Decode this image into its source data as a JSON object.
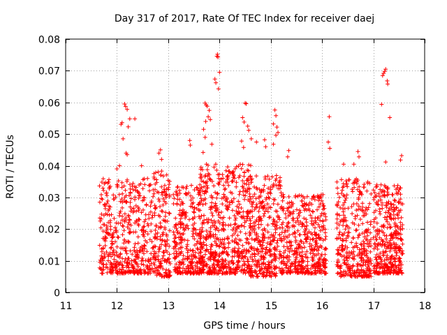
{
  "chart_data": {
    "type": "scatter",
    "title": "Day 317 of 2017, Rate Of TEC Index for receiver daej",
    "xlabel": "GPS time / hours",
    "ylabel": "ROTI / TECUs",
    "xlim": [
      11,
      18
    ],
    "ylim": [
      0,
      0.08
    ],
    "xticks": [
      11,
      12,
      13,
      14,
      15,
      16,
      17,
      18
    ],
    "xtick_labels": [
      "11",
      "12",
      "13",
      "14",
      "15",
      "16",
      "17",
      "18"
    ],
    "yticks": [
      0,
      0.01,
      0.02,
      0.03,
      0.04,
      0.05,
      0.06,
      0.07,
      0.08
    ],
    "ytick_labels": [
      "0",
      "0.01",
      "0.02",
      "0.03",
      "0.04",
      "0.05",
      "0.06",
      "0.07",
      "0.08"
    ],
    "grid": true,
    "marker": "+",
    "color": "#ff0000",
    "series": [
      {
        "name": "ROTI",
        "points": [
          [
            12.08,
            0.0531
          ],
          [
            12.1,
            0.0536
          ],
          [
            12.15,
            0.0595
          ],
          [
            12.17,
            0.0587
          ],
          [
            12.2,
            0.0578
          ],
          [
            12.22,
            0.0523
          ],
          [
            12.25,
            0.0548
          ],
          [
            12.35,
            0.0548
          ],
          [
            12.12,
            0.0485
          ],
          [
            12.18,
            0.044
          ],
          [
            12.2,
            0.0435
          ],
          [
            12.05,
            0.04
          ],
          [
            12.0,
            0.039
          ],
          [
            12.48,
            0.04
          ],
          [
            12.85,
            0.045
          ],
          [
            12.82,
            0.044
          ],
          [
            12.87,
            0.042
          ],
          [
            13.42,
            0.048
          ],
          [
            13.43,
            0.0465
          ],
          [
            13.72,
            0.0598
          ],
          [
            13.74,
            0.0592
          ],
          [
            13.76,
            0.0588
          ],
          [
            13.73,
            0.054
          ],
          [
            13.8,
            0.0575
          ],
          [
            13.82,
            0.0546
          ],
          [
            13.78,
            0.0555
          ],
          [
            13.69,
            0.0515
          ],
          [
            13.68,
            0.0442
          ],
          [
            13.72,
            0.049
          ],
          [
            13.85,
            0.0468
          ],
          [
            13.91,
            0.0674
          ],
          [
            13.93,
            0.0662
          ],
          [
            13.95,
            0.0746
          ],
          [
            13.96,
            0.0752
          ],
          [
            13.97,
            0.0743
          ],
          [
            14.0,
            0.0695
          ],
          [
            13.98,
            0.0643
          ],
          [
            14.45,
            0.0552
          ],
          [
            14.48,
            0.0538
          ],
          [
            14.5,
            0.0598
          ],
          [
            14.52,
            0.0596
          ],
          [
            14.55,
            0.0525
          ],
          [
            14.57,
            0.0512
          ],
          [
            14.43,
            0.0478
          ],
          [
            14.47,
            0.0458
          ],
          [
            14.62,
            0.0485
          ],
          [
            14.72,
            0.0475
          ],
          [
            14.88,
            0.0482
          ],
          [
            14.9,
            0.046
          ],
          [
            15.08,
            0.0576
          ],
          [
            15.1,
            0.0558
          ],
          [
            15.05,
            0.0532
          ],
          [
            15.1,
            0.0496
          ],
          [
            15.14,
            0.0505
          ],
          [
            15.12,
            0.0522
          ],
          [
            15.05,
            0.0468
          ],
          [
            15.35,
            0.0448
          ],
          [
            15.33,
            0.0428
          ],
          [
            16.14,
            0.0555
          ],
          [
            16.12,
            0.0475
          ],
          [
            16.15,
            0.0455
          ],
          [
            16.42,
            0.0405
          ],
          [
            16.62,
            0.0405
          ],
          [
            16.7,
            0.0445
          ],
          [
            16.72,
            0.0428
          ],
          [
            17.18,
            0.0685
          ],
          [
            17.2,
            0.0692
          ],
          [
            17.22,
            0.0698
          ],
          [
            17.24,
            0.0705
          ],
          [
            17.16,
            0.0594
          ],
          [
            17.27,
            0.0668
          ],
          [
            17.28,
            0.0658
          ],
          [
            17.32,
            0.0552
          ],
          [
            17.55,
            0.0432
          ],
          [
            17.53,
            0.0418
          ],
          [
            17.24,
            0.0412
          ]
        ]
      }
    ],
    "dense_regions": [
      {
        "x_start": 11.66,
        "x_end": 12.72,
        "y_low": 0.006,
        "y_high": 0.036,
        "count": 480
      },
      {
        "x_start": 12.72,
        "x_end": 13.04,
        "y_low": 0.005,
        "y_high": 0.039,
        "count": 180
      },
      {
        "x_start": 13.1,
        "x_end": 13.65,
        "y_low": 0.006,
        "y_high": 0.034,
        "count": 300
      },
      {
        "x_start": 13.6,
        "x_end": 14.62,
        "y_low": 0.006,
        "y_high": 0.041,
        "count": 620
      },
      {
        "x_start": 14.6,
        "x_end": 15.2,
        "y_low": 0.005,
        "y_high": 0.037,
        "count": 330
      },
      {
        "x_start": 15.2,
        "x_end": 16.08,
        "y_low": 0.006,
        "y_high": 0.031,
        "count": 460
      },
      {
        "x_start": 16.28,
        "x_end": 16.96,
        "y_low": 0.005,
        "y_high": 0.036,
        "count": 360
      },
      {
        "x_start": 17.0,
        "x_end": 17.58,
        "y_low": 0.006,
        "y_high": 0.034,
        "count": 380
      }
    ]
  }
}
